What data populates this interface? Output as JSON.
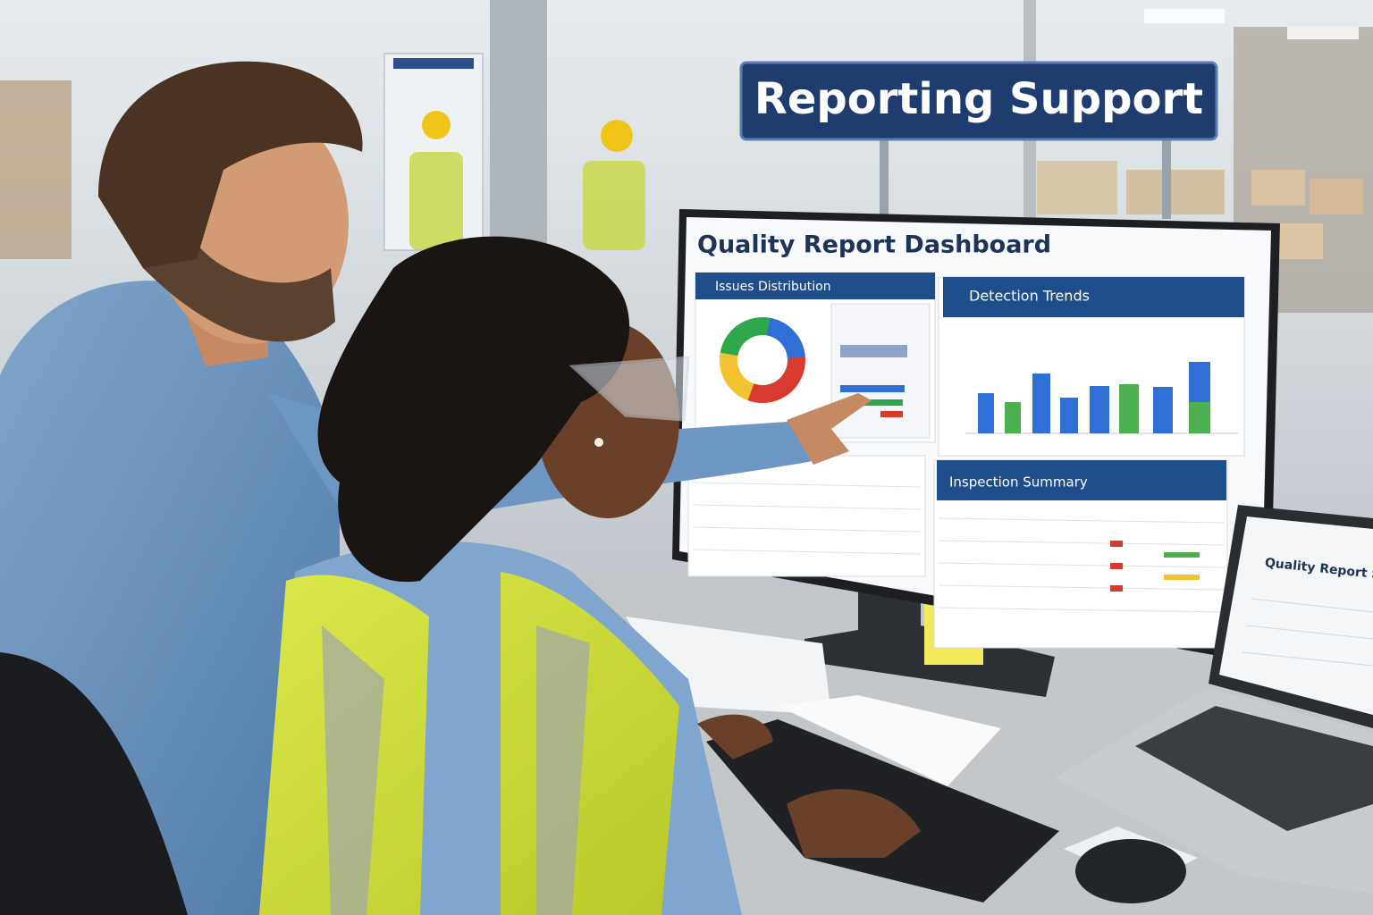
{
  "sign": {
    "text": "Reporting Support"
  },
  "monitor": {
    "title": "Quality Report Dashboard",
    "panels": [
      "Issues Distribution",
      "Detection Trends",
      "Inspection Summary"
    ]
  },
  "laptop": {
    "title": "Quality Report Summ"
  }
}
